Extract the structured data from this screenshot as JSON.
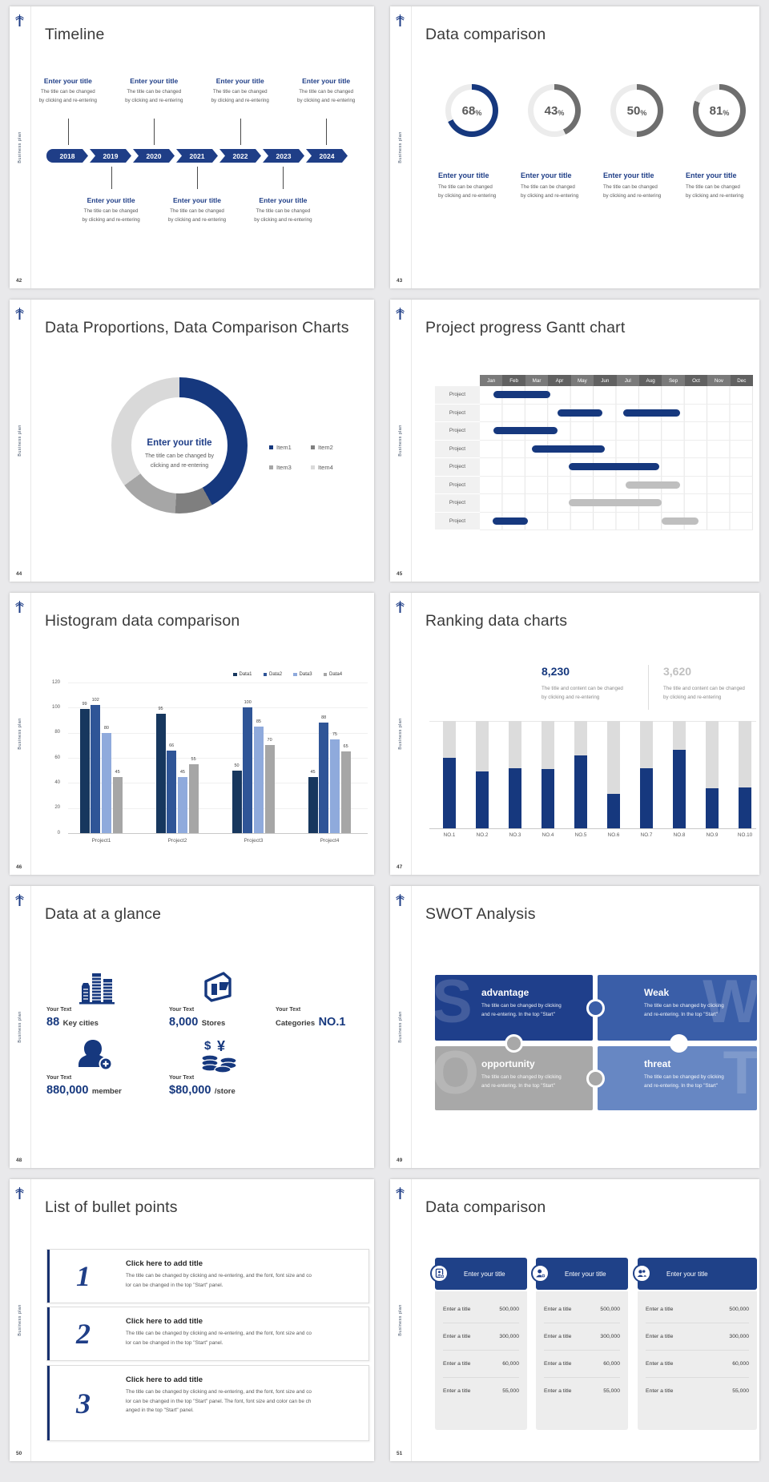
{
  "brand": {
    "sidebar_label": "Business plan",
    "accent": "#1F3E87",
    "chart_blue": "#16387E",
    "gray": "#BFBFBF"
  },
  "slides": [
    {
      "number": "42",
      "type": "timeline",
      "title": "Timeline",
      "years": [
        "2018",
        "2019",
        "2020",
        "2021",
        "2022",
        "2023",
        "2024"
      ],
      "item_title": "Enter your title",
      "item_desc": [
        "The title can be changed",
        "by clicking and re-entering"
      ],
      "top_items": 4,
      "bottom_items": 3
    },
    {
      "number": "43",
      "type": "rings",
      "title": "Data comparison",
      "item_title": "Enter your title",
      "item_desc": [
        "The title can be changed",
        "by clicking and re-entering"
      ],
      "rings": [
        {
          "value": "68",
          "pct": "%",
          "fraction": 68,
          "color": "#16387E"
        },
        {
          "value": "43",
          "pct": "%",
          "fraction": 43,
          "color": "#6E6E6E"
        },
        {
          "value": "50",
          "pct": "%",
          "fraction": 50,
          "color": "#6E6E6E"
        },
        {
          "value": "81",
          "pct": "%",
          "fraction": 81,
          "color": "#6E6E6E"
        }
      ],
      "track_color": "#ECECEC"
    },
    {
      "number": "44",
      "type": "donut",
      "title": "Data Proportions, Data Comparison Charts",
      "center_title": "Enter your title",
      "center_desc": [
        "The title can be changed by",
        "clicking and re-entering"
      ],
      "segments": [
        {
          "label": "Item1",
          "value": 42,
          "color": "#16387E"
        },
        {
          "label": "Item2",
          "value": 9,
          "color": "#7F7F7F"
        },
        {
          "label": "Item3",
          "value": 14,
          "color": "#A6A6A6"
        },
        {
          "label": "Item4",
          "value": 35,
          "color": "#D9D9D9"
        }
      ]
    },
    {
      "number": "45",
      "type": "gantt",
      "title": "Project progress Gantt chart",
      "months": [
        "Jan",
        "Feb",
        "Mar",
        "Apr",
        "May",
        "Jun",
        "Jul",
        "Aug",
        "Sep",
        "Oct",
        "Nov",
        "Dec"
      ],
      "row_label": "Project",
      "rows": [
        [
          {
            "start": 0.6,
            "end": 3.1,
            "color": "blue"
          }
        ],
        [
          {
            "start": 3.4,
            "end": 5.4,
            "color": "blue"
          },
          {
            "start": 6.3,
            "end": 8.8,
            "color": "blue"
          }
        ],
        [
          {
            "start": 0.6,
            "end": 3.4,
            "color": "blue"
          }
        ],
        [
          {
            "start": 2.3,
            "end": 5.5,
            "color": "blue"
          }
        ],
        [
          {
            "start": 3.9,
            "end": 7.9,
            "color": "blue"
          }
        ],
        [
          {
            "start": 6.4,
            "end": 8.8,
            "color": "gray"
          }
        ],
        [
          {
            "start": 3.9,
            "end": 8.0,
            "color": "gray"
          }
        ],
        [
          {
            "start": 0.55,
            "end": 2.1,
            "color": "blue"
          },
          {
            "start": 8.0,
            "end": 9.6,
            "color": "gray"
          }
        ]
      ]
    },
    {
      "number": "46",
      "type": "hist",
      "title": "Histogram data comparison",
      "chart": {
        "type": "bar",
        "categories": [
          "Project1",
          "Project2",
          "Project3",
          "Project4"
        ],
        "series": [
          {
            "name": "Data1",
            "color": "#17375E",
            "values": [
              99,
              95,
              50,
              45
            ]
          },
          {
            "name": "Data2",
            "color": "#2F5597",
            "values": [
              102,
              66,
              100,
              88
            ]
          },
          {
            "name": "Data3",
            "color": "#8FAADC",
            "values": [
              80,
              45,
              85,
              75
            ]
          },
          {
            "name": "Data4",
            "color": "#A6A6A6",
            "values": [
              45,
              55,
              70,
              65
            ]
          }
        ],
        "yticks": [
          0,
          20,
          40,
          60,
          80,
          100,
          120
        ],
        "ylim": [
          0,
          120
        ]
      }
    },
    {
      "number": "47",
      "type": "rank",
      "title": "Ranking data charts",
      "stat1": {
        "value": "8,230",
        "color": "#16387E",
        "desc": [
          "The title and content can be changed",
          "by clicking and re-entering"
        ]
      },
      "stat2": {
        "value": "3,620",
        "color": "#C0C0C0",
        "desc": [
          "The title and content can be changed",
          "by clicking and re-entering"
        ]
      },
      "chart": {
        "type": "bar",
        "categories": [
          "NO.1",
          "NO.2",
          "NO.3",
          "NO.4",
          "NO.5",
          "NO.6",
          "NO.7",
          "NO.8",
          "NO.9",
          "NO.10"
        ],
        "fill_percent": [
          66,
          53,
          56,
          55,
          68,
          32,
          56,
          73,
          37,
          38
        ]
      }
    },
    {
      "number": "48",
      "type": "glance",
      "title": "Data at a glance",
      "items": [
        {
          "label": "Your Text",
          "value": "88",
          "unit": "Key cities",
          "icon": "city-buildings-icon"
        },
        {
          "label": "Your Text",
          "value": "8,000",
          "unit": "Stores",
          "icon": "store-icon"
        },
        {
          "label": "Your Text",
          "prefix": "Categories",
          "value": "NO.1",
          "icon": "pie-chart-icon"
        },
        {
          "label": "Your Text",
          "value": "880,000",
          "unit": "member",
          "icon": "member-add-icon"
        },
        {
          "label": "Your Text",
          "value": "$80,000",
          "unit": "/store",
          "icon": "coins-icon"
        }
      ]
    },
    {
      "number": "49",
      "type": "swot",
      "title": "SWOT Analysis",
      "blocks": [
        {
          "letter": "S",
          "title": "advantage",
          "desc": [
            "The title can be changed by clicking",
            "and re-entering. In the top \"Start\""
          ],
          "color": "#1F3F8B"
        },
        {
          "letter": "W",
          "title": "Weak",
          "desc": [
            "The title can be changed by clicking",
            "and re-entering. In the top \"Start\""
          ],
          "color": "#3A5EA8"
        },
        {
          "letter": "O",
          "title": "opportunity",
          "desc": [
            "The title can be changed by clicking",
            "and re-entering. In the top \"Start\""
          ],
          "color": "#A8A8A8"
        },
        {
          "letter": "T",
          "title": "threat",
          "desc": [
            "The title can be changed by clicking",
            "and re-entering. In the top \"Start\""
          ],
          "color": "#6787C3"
        }
      ]
    },
    {
      "number": "50",
      "type": "bullets",
      "title": "List of bullet points",
      "items": [
        {
          "num": "1",
          "title": "Click here to add title",
          "lines": [
            "The title can be changed by clicking and re-entering, and the font, font size and co",
            "lor can be changed in the top \"Start\" panel."
          ]
        },
        {
          "num": "2",
          "title": "Click here to add title",
          "lines": [
            "The title can be changed by clicking and re-entering, and the font, font size and co",
            "lor can be changed in the top \"Start\" panel."
          ]
        },
        {
          "num": "3",
          "title": "Click here to add title",
          "lines": [
            "The title can be changed by clicking and re-entering, and the font, font size and co",
            "lor can be changed in the top \"Start\" panel. The font, font size and color can be ch",
            "anged in the top \"Start\" panel."
          ]
        }
      ]
    },
    {
      "number": "51",
      "type": "tables",
      "title": "Data comparison",
      "cards": [
        {
          "header": "Enter your title",
          "icon": "document-person-add-icon",
          "rows": [
            [
              "Enter a title",
              "500,000"
            ],
            [
              "Enter a title",
              "300,000"
            ],
            [
              "Enter a title",
              "60,000"
            ],
            [
              "Enter a title",
              "55,000"
            ]
          ]
        },
        {
          "header": "Enter your title",
          "icon": "person-add-icon",
          "rows": [
            [
              "Enter a title",
              "500,000"
            ],
            [
              "Enter a title",
              "300,000"
            ],
            [
              "Enter a title",
              "60,000"
            ],
            [
              "Enter a title",
              "55,000"
            ]
          ]
        },
        {
          "header": "Enter your title",
          "icon": "people-icon",
          "rows": [
            [
              "Enter a title",
              "500,000"
            ],
            [
              "Enter a title",
              "300,000"
            ],
            [
              "Enter a title",
              "60,000"
            ],
            [
              "Enter a title",
              "55,000"
            ]
          ]
        }
      ]
    }
  ]
}
